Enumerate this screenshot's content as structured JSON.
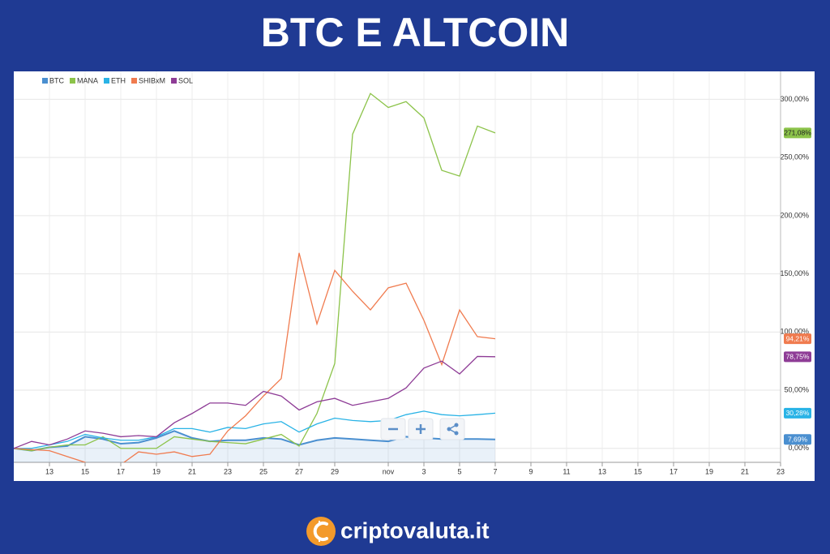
{
  "header": {
    "title": "BTC E ALTCOIN"
  },
  "chart_data": {
    "type": "line",
    "categories": [
      null,
      null,
      "13",
      null,
      "15",
      null,
      "17",
      null,
      "19",
      null,
      "21",
      null,
      "23",
      null,
      "25",
      null,
      "27",
      null,
      "29",
      null,
      null,
      "nov",
      null,
      "3",
      null,
      "5",
      null,
      "7",
      null,
      "9",
      null,
      "11",
      null,
      "13",
      null,
      "15",
      null,
      "17",
      null,
      "19",
      null,
      "21",
      null,
      "23"
    ],
    "series": [
      {
        "name": "BTC",
        "color": "#4a8fd0",
        "area": true,
        "values": [
          0,
          -2,
          1,
          2,
          10,
          8,
          4,
          5,
          9,
          15,
          9,
          6,
          7,
          7,
          9,
          8,
          3,
          7,
          9,
          8,
          7,
          6,
          10,
          9,
          8,
          8,
          8,
          7.69,
          null,
          null,
          null,
          null,
          null,
          null,
          null,
          null,
          null,
          null,
          null,
          null,
          null,
          null,
          null,
          null
        ],
        "value_labels": [
          null,
          null,
          null,
          null,
          null,
          null,
          null,
          null,
          null,
          null,
          null,
          null,
          null,
          null,
          null,
          null,
          null,
          null,
          null,
          null,
          null,
          null,
          null,
          null,
          null,
          null,
          null,
          "7,69%",
          null,
          null,
          null,
          null,
          null,
          null,
          null,
          null,
          null,
          null,
          null,
          null,
          null,
          null,
          null,
          null
        ]
      },
      {
        "name": "MANA",
        "color": "#8cc34a",
        "values": [
          0,
          -2,
          1,
          3,
          3,
          10,
          0,
          0,
          0,
          10,
          8,
          6,
          5,
          4,
          8,
          12,
          2,
          30,
          73,
          270,
          305,
          293,
          298,
          284,
          239,
          234,
          277,
          271.08,
          null,
          null,
          null,
          null,
          null,
          null,
          null,
          null,
          null,
          null,
          null,
          null,
          null,
          null,
          null,
          null
        ],
        "value_labels": [
          null,
          null,
          null,
          null,
          null,
          null,
          null,
          null,
          null,
          null,
          null,
          null,
          null,
          null,
          null,
          null,
          null,
          null,
          null,
          null,
          null,
          null,
          null,
          null,
          null,
          null,
          null,
          "271,08%",
          null,
          null,
          null,
          null,
          null,
          null,
          null,
          null,
          null,
          null,
          null,
          null,
          null,
          null,
          null,
          null
        ]
      },
      {
        "name": "ETH",
        "color": "#29b3e6",
        "values": [
          0,
          0,
          3,
          6,
          12,
          9,
          7,
          7,
          10,
          17,
          17,
          14,
          18,
          17,
          21,
          23,
          14,
          21,
          26,
          24,
          23,
          24,
          29,
          32,
          29,
          28,
          29,
          30.28,
          null,
          null,
          null,
          null,
          null,
          null,
          null,
          null,
          null,
          null,
          null,
          null,
          null,
          null,
          null,
          null
        ],
        "value_labels": [
          null,
          null,
          null,
          null,
          null,
          null,
          null,
          null,
          null,
          null,
          null,
          null,
          null,
          null,
          null,
          null,
          null,
          null,
          null,
          null,
          null,
          null,
          null,
          null,
          null,
          null,
          null,
          "30,28%",
          null,
          null,
          null,
          null,
          null,
          null,
          null,
          null,
          null,
          null,
          null,
          null,
          null,
          null,
          null,
          null
        ]
      },
      {
        "name": "SHIBxM",
        "color": "#f07b4f",
        "values": [
          0,
          -1,
          -2,
          -7,
          -12,
          -20,
          -14,
          -3,
          -5,
          -3,
          -7,
          -5,
          15,
          28,
          45,
          60,
          168,
          107,
          153,
          135,
          119,
          138,
          142,
          110,
          72,
          119,
          96,
          94.21,
          null,
          null,
          null,
          null,
          null,
          null,
          null,
          null,
          null,
          null,
          null,
          null,
          null,
          null,
          null,
          null
        ],
        "value_labels": [
          null,
          null,
          null,
          null,
          null,
          null,
          null,
          null,
          null,
          null,
          null,
          null,
          null,
          null,
          null,
          null,
          null,
          null,
          null,
          null,
          null,
          null,
          null,
          null,
          null,
          null,
          null,
          "94,21%",
          null,
          null,
          null,
          null,
          null,
          null,
          null,
          null,
          null,
          null,
          null,
          null,
          null,
          null,
          null,
          null
        ]
      },
      {
        "name": "SOL",
        "color": "#8e3c96",
        "values": [
          0,
          6,
          3,
          8,
          15,
          13,
          10,
          11,
          10,
          22,
          30,
          39,
          39,
          37,
          49,
          45,
          33,
          40,
          43,
          37,
          40,
          43,
          52,
          69,
          75,
          64,
          79,
          78.75,
          null,
          null,
          null,
          null,
          null,
          null,
          null,
          null,
          null,
          null,
          null,
          null,
          null,
          null,
          null,
          null
        ],
        "value_labels": [
          null,
          null,
          null,
          null,
          null,
          null,
          null,
          null,
          null,
          null,
          null,
          null,
          null,
          null,
          null,
          null,
          null,
          null,
          null,
          null,
          null,
          null,
          null,
          null,
          null,
          null,
          null,
          "78,75%",
          null,
          null,
          null,
          null,
          null,
          null,
          null,
          null,
          null,
          null,
          null,
          null,
          null,
          null,
          null,
          null
        ]
      }
    ],
    "ylim": [
      -12,
      324
    ],
    "yticks": [
      {
        "value": 0,
        "label": "0,00%"
      },
      {
        "value": 50,
        "label": "50,00%"
      },
      {
        "value": 100,
        "label": "100,00%"
      },
      {
        "value": 150,
        "label": "150,00%"
      },
      {
        "value": 200,
        "label": "200,00%"
      },
      {
        "value": 250,
        "label": "250,00%"
      },
      {
        "value": 300,
        "label": "300,00%"
      }
    ],
    "grid": true,
    "legend": "top-left"
  },
  "footer": {
    "brand": "criptovaluta.it"
  }
}
